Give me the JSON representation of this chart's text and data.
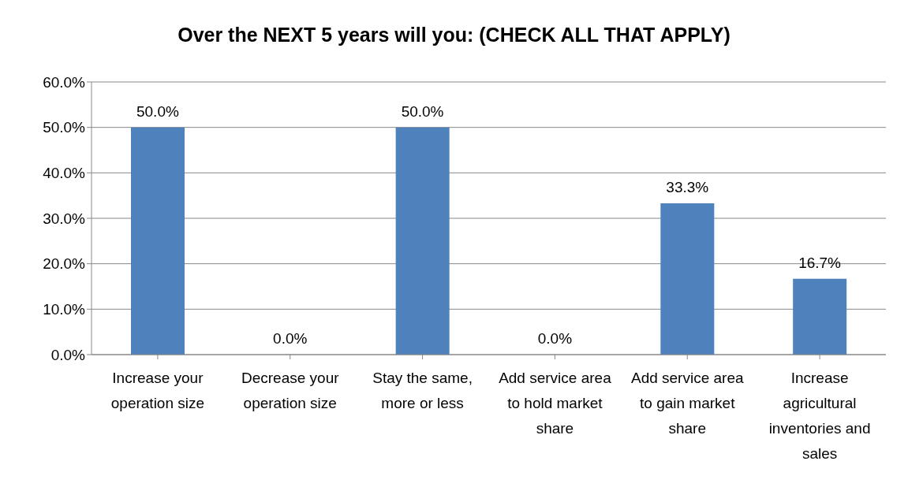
{
  "chart_data": {
    "type": "bar",
    "title": "Over the NEXT 5 years will you: (CHECK ALL THAT APPLY)",
    "categories": [
      "Increase your operation size",
      "Decrease your operation size",
      "Stay the same, more or less",
      "Add service area to hold market share",
      "Add service area to gain market share",
      "Increase agricultural inventories and sales"
    ],
    "values": [
      50,
      0,
      50,
      0,
      33.3,
      16.7
    ],
    "value_labels": [
      "50.0%",
      "0.0%",
      "50.0%",
      "0.0%",
      "33.3%",
      "16.7%"
    ],
    "color": "#4f81bd",
    "ylim": [
      0,
      60
    ],
    "yticks": [
      {
        "value": 0,
        "label": "0.0%"
      },
      {
        "value": 10,
        "label": "10.0%"
      },
      {
        "value": 20,
        "label": "20.0%"
      },
      {
        "value": 30,
        "label": "30.0%"
      },
      {
        "value": 40,
        "label": "40.0%"
      },
      {
        "value": 50,
        "label": "50.0%"
      },
      {
        "value": 60,
        "label": "60.0%"
      }
    ],
    "grid": "y"
  }
}
